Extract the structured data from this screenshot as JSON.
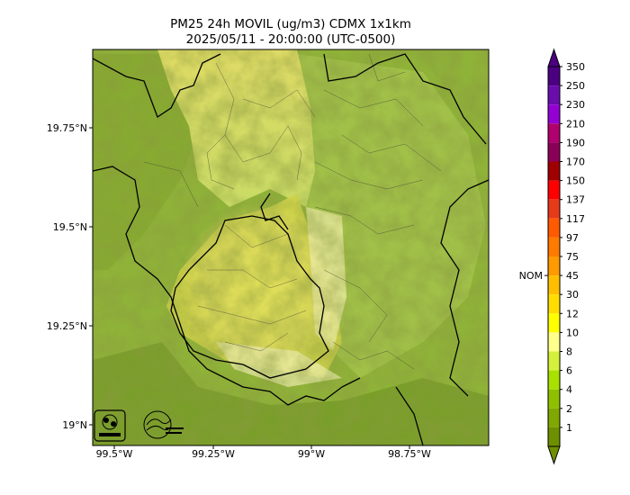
{
  "map": {
    "title": "PM25 24h MOVIL (ug/m3) CDMX 1x1km",
    "subtitle": "2025/05/11 - 20:00:00 (UTC-0500)",
    "lon_ticks": [
      "99.5°W",
      "99.25°W",
      "99°W",
      "98.75°W"
    ],
    "lat_ticks": [
      "19.75°N",
      "19.5°N",
      "19.25°N",
      "19°N"
    ],
    "logos": [
      "sedema-logo",
      "aire-logo"
    ]
  },
  "colorbar": {
    "nom_label": "NOM",
    "nom_value": 45,
    "levels": [
      {
        "label": "350",
        "color": "#4b0082"
      },
      {
        "label": "250",
        "color": "#6a0dad"
      },
      {
        "label": "230",
        "color": "#9400d3"
      },
      {
        "label": "210",
        "color": "#b0006e"
      },
      {
        "label": "190",
        "color": "#8b0057"
      },
      {
        "label": "170",
        "color": "#a00000"
      },
      {
        "label": "150",
        "color": "#ff0000"
      },
      {
        "label": "137",
        "color": "#e63a1a"
      },
      {
        "label": "117",
        "color": "#ff5a00"
      },
      {
        "label": "97",
        "color": "#ff7a00"
      },
      {
        "label": "75",
        "color": "#ff9a00"
      },
      {
        "label": "45",
        "color": "#ffbf00"
      },
      {
        "label": "30",
        "color": "#ffdd00"
      },
      {
        "label": "12",
        "color": "#ffff00"
      },
      {
        "label": "10",
        "color": "#ffff8c"
      },
      {
        "label": "8",
        "color": "#d4f03c"
      },
      {
        "label": "6",
        "color": "#a8e000"
      },
      {
        "label": "4",
        "color": "#8fc000"
      },
      {
        "label": "2",
        "color": "#7fa800"
      },
      {
        "label": "1",
        "color": "#6e9000"
      }
    ]
  }
}
